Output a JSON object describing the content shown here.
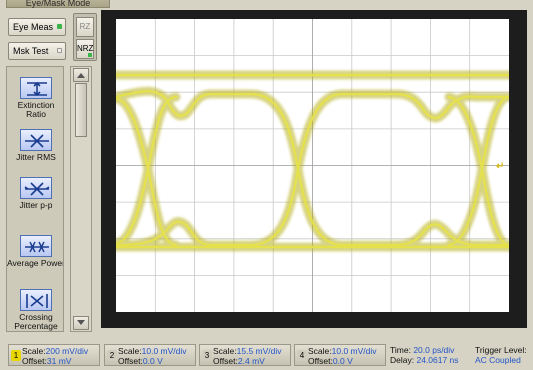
{
  "mode_title": "Eye/Mask Mode",
  "buttons": {
    "eye_meas": "Eye Meas",
    "msk_test": "Msk Test",
    "rz": "RZ",
    "nrz": "NRZ"
  },
  "measurements": [
    {
      "label": "Extinction Ratio",
      "icon": "extinction-ratio-icon"
    },
    {
      "label": "Jitter RMS",
      "icon": "jitter-rms-icon"
    },
    {
      "label": "Jitter p-p",
      "icon": "jitter-pp-icon"
    },
    {
      "label": "Average Power",
      "icon": "average-power-icon"
    },
    {
      "label": "Crossing Percentage",
      "icon": "crossing-percentage-icon"
    }
  ],
  "channels": [
    {
      "num": "1",
      "scale_label": "Scale:",
      "scale": "200 mV/div",
      "offset_label": "Offset:",
      "offset": "31 mV",
      "color": "#e8d800",
      "active": true
    },
    {
      "num": "2",
      "scale_label": "Scale:",
      "scale": "10.0 mV/div",
      "offset_label": "Offset:",
      "offset": "0.0 V",
      "color": "#cfccbd",
      "active": false
    },
    {
      "num": "3",
      "scale_label": "Scale:",
      "scale": "15.5 mV/div",
      "offset_label": "Offset:",
      "offset": "2.4 mV",
      "color": "#cfccbd",
      "active": false
    },
    {
      "num": "4",
      "scale_label": "Scale:",
      "scale": "10.0 mV/div",
      "offset_label": "Offset:",
      "offset": "0.0 V",
      "color": "#cfccbd",
      "active": false
    }
  ],
  "timebase": {
    "time_label": "Time:",
    "time": "20.0 ps/div",
    "delay_label": "Delay:",
    "delay": "24.0617 ns"
  },
  "trigger": {
    "label": "Trigger Level:",
    "value": "AC Coupled"
  },
  "colors": {
    "trace": "#c8c20a",
    "trace_bright": "#f2ee40",
    "accent_blue": "#2454c8",
    "active_indicator": "#3bb54a"
  }
}
